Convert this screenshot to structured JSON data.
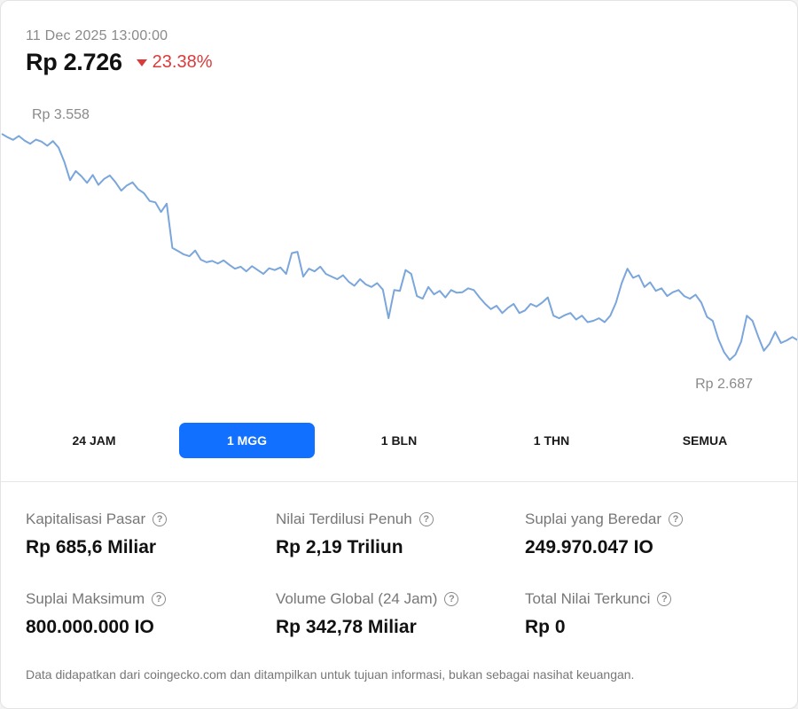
{
  "header": {
    "timestamp": "11 Dec 2025 13:00:00",
    "price": "Rp 2.726",
    "change": "23.38%",
    "change_direction": "down",
    "change_color": "#d93b3b"
  },
  "chart_data": {
    "type": "line",
    "high_label": "Rp 3.558",
    "low_label": "Rp 2.687",
    "line_color": "#7aa6dc",
    "grid": false,
    "y_range": [
      2687,
      3558
    ],
    "values": [
      3558,
      3545,
      3535,
      3550,
      3532,
      3520,
      3536,
      3528,
      3512,
      3530,
      3505,
      3450,
      3380,
      3415,
      3395,
      3370,
      3400,
      3362,
      3385,
      3398,
      3372,
      3340,
      3360,
      3372,
      3345,
      3330,
      3300,
      3295,
      3258,
      3290,
      3120,
      3108,
      3095,
      3088,
      3110,
      3075,
      3065,
      3070,
      3060,
      3072,
      3055,
      3040,
      3048,
      3030,
      3050,
      3035,
      3020,
      3042,
      3035,
      3045,
      3020,
      3100,
      3105,
      3010,
      3040,
      3030,
      3048,
      3020,
      3010,
      3000,
      3015,
      2990,
      2975,
      3000,
      2980,
      2970,
      2985,
      2960,
      2850,
      2958,
      2955,
      3035,
      3020,
      2935,
      2925,
      2970,
      2942,
      2955,
      2930,
      2958,
      2948,
      2950,
      2965,
      2958,
      2930,
      2905,
      2885,
      2898,
      2870,
      2890,
      2905,
      2870,
      2880,
      2905,
      2895,
      2910,
      2930,
      2860,
      2850,
      2862,
      2870,
      2845,
      2860,
      2835,
      2840,
      2850,
      2835,
      2860,
      2910,
      2985,
      3040,
      3005,
      3015,
      2970,
      2988,
      2955,
      2965,
      2935,
      2950,
      2958,
      2935,
      2925,
      2940,
      2910,
      2855,
      2840,
      2770,
      2720,
      2690,
      2710,
      2760,
      2860,
      2840,
      2780,
      2725,
      2752,
      2798,
      2755,
      2765,
      2778,
      2765
    ],
    "x_ticks": [
      "24 JAM",
      "1 MGG",
      "1 BLN",
      "1 THN",
      "SEMUA"
    ]
  },
  "tabs": [
    {
      "label": "24 JAM",
      "active": false
    },
    {
      "label": "1 MGG",
      "active": true
    },
    {
      "label": "1 BLN",
      "active": false
    },
    {
      "label": "1 THN",
      "active": false
    },
    {
      "label": "SEMUA",
      "active": false
    }
  ],
  "accent_color": "#1170ff",
  "stats": [
    {
      "label": "Kapitalisasi Pasar",
      "value": "Rp 685,6 Miliar",
      "icon": "help-icon"
    },
    {
      "label": "Nilai Terdilusi Penuh",
      "value": "Rp 2,19 Triliun",
      "icon": "help-icon"
    },
    {
      "label": "Suplai yang Beredar",
      "value": "249.970.047 IO",
      "icon": "help-icon"
    },
    {
      "label": "Suplai Maksimum",
      "value": "800.000.000 IO",
      "icon": "help-icon"
    },
    {
      "label": "Volume Global (24 Jam)",
      "value": "Rp 342,78 Miliar",
      "icon": "help-icon"
    },
    {
      "label": "Total Nilai Terkunci",
      "value": "Rp 0",
      "icon": "help-icon"
    }
  ],
  "help_glyph": "?",
  "footnote": "Data didapatkan dari coingecko.com dan ditampilkan untuk tujuan informasi, bukan sebagai nasihat keuangan."
}
